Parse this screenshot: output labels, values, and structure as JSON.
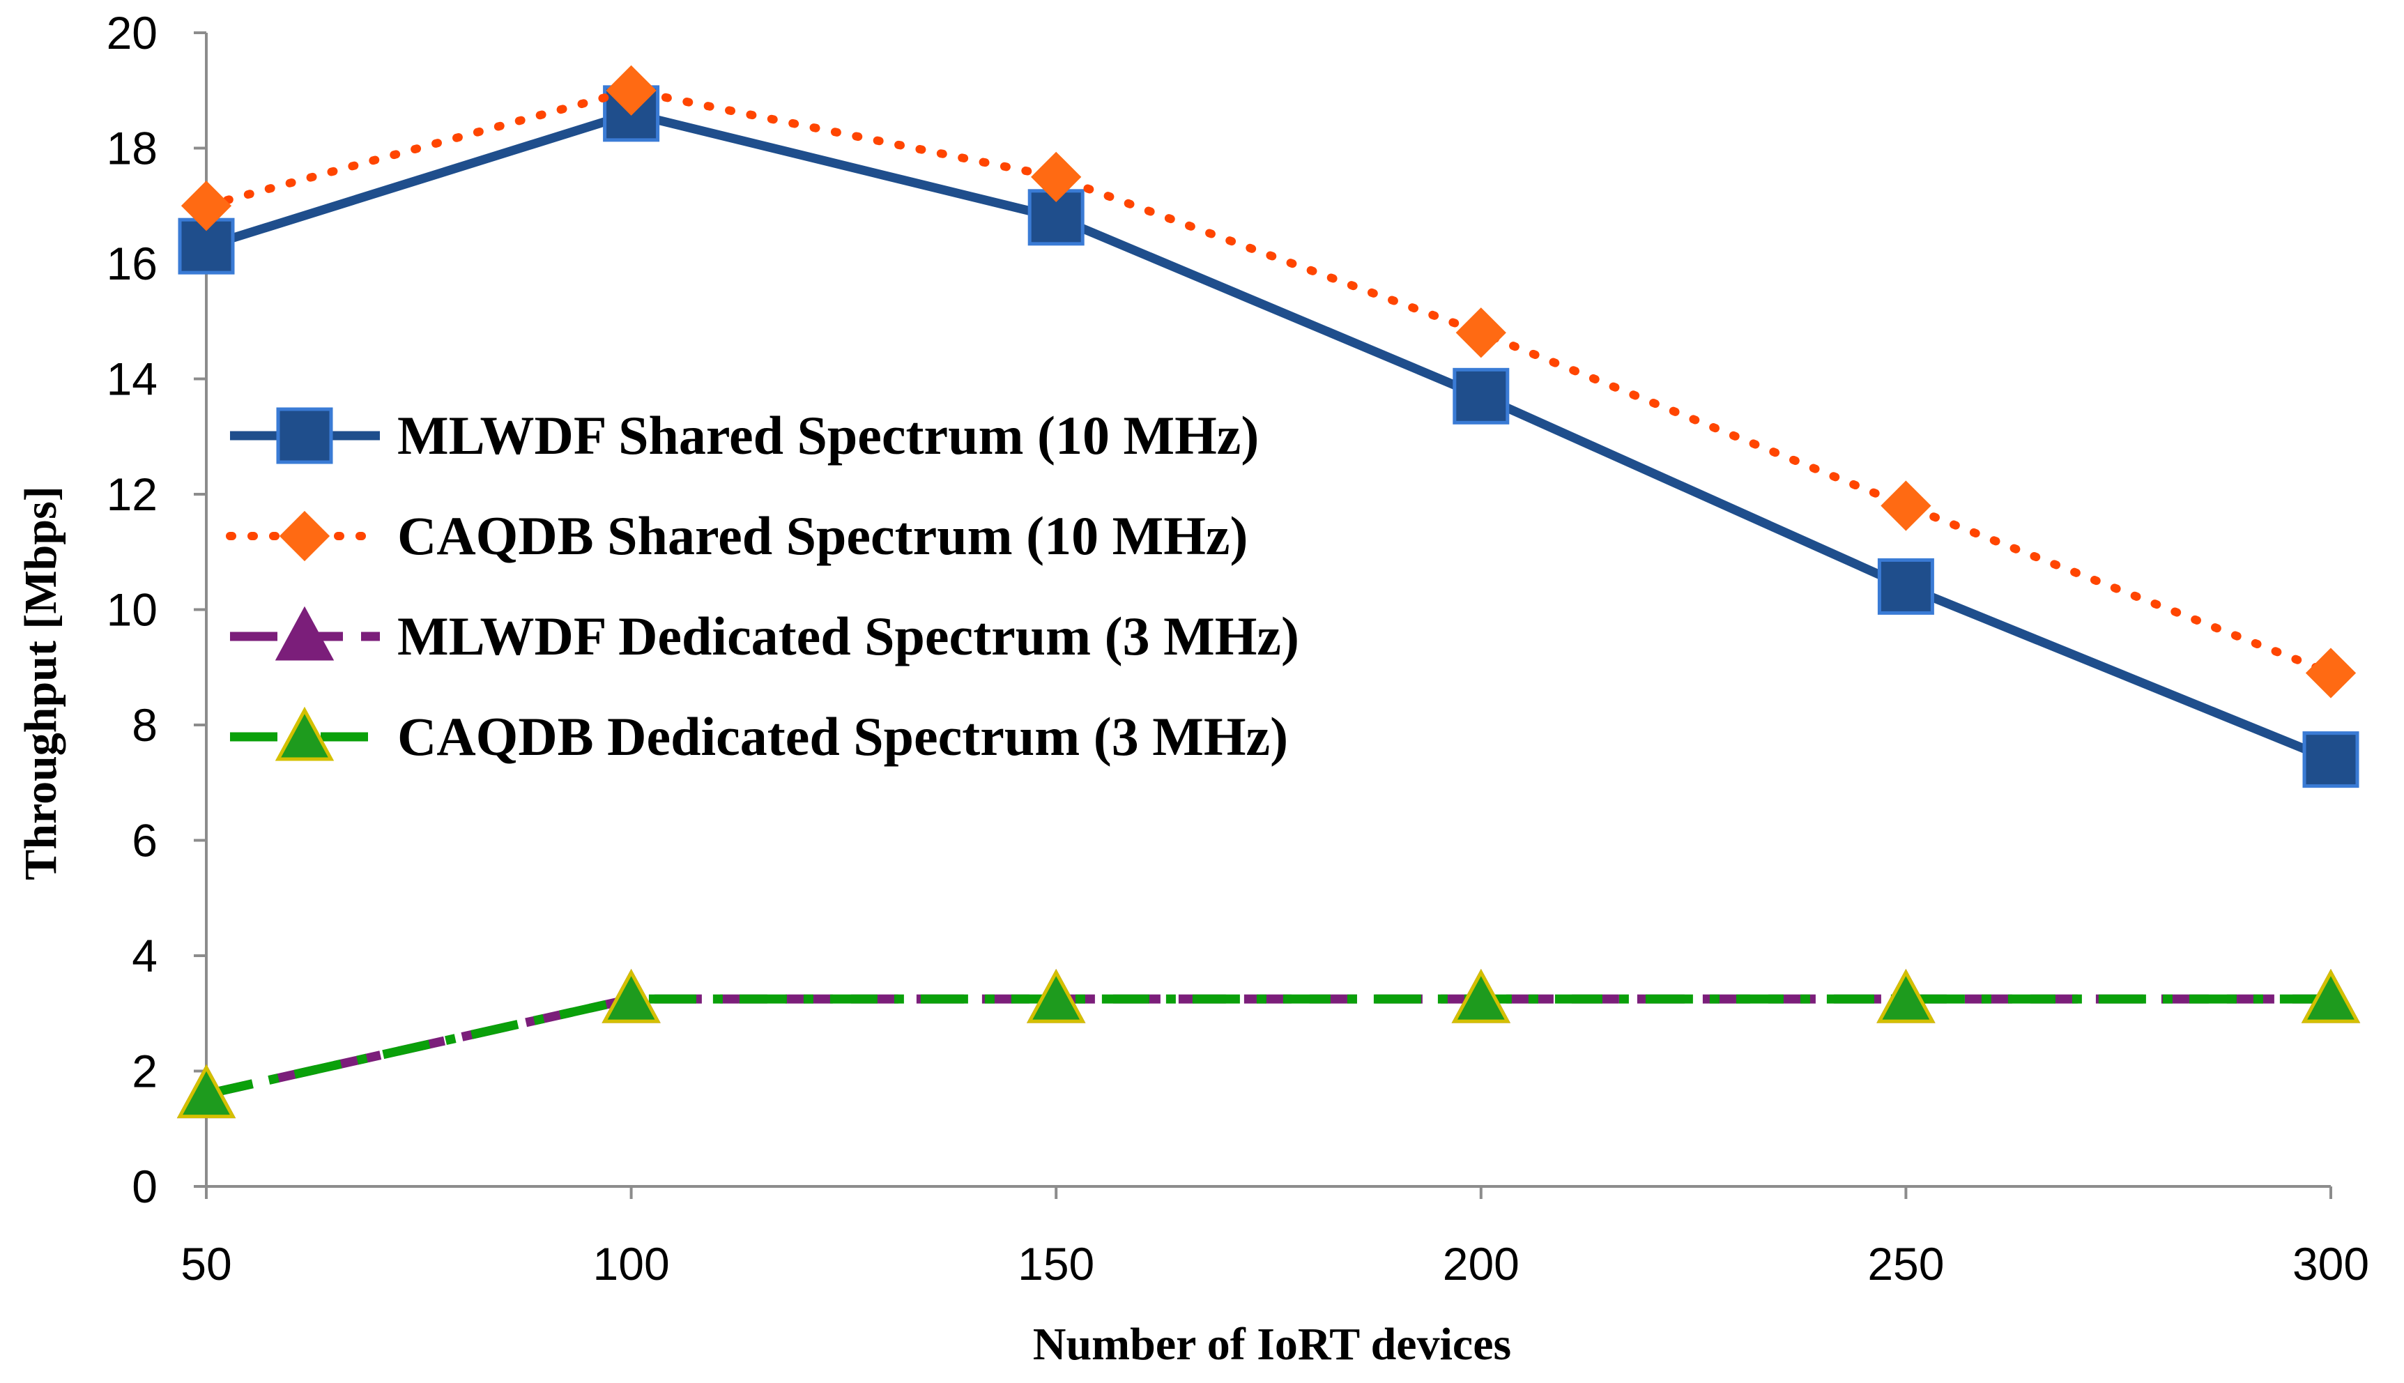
{
  "chart_data": {
    "type": "line",
    "title": "",
    "xlabel": "Number of IoRT devices",
    "ylabel": "Throughput [Mbps]",
    "x": [
      50,
      100,
      150,
      200,
      250,
      300
    ],
    "xlim": [
      50,
      300
    ],
    "ylim": [
      0,
      20
    ],
    "yticks": [
      0,
      2,
      4,
      6,
      8,
      10,
      12,
      14,
      16,
      18,
      20
    ],
    "grid": false,
    "legend_position": "center-left",
    "series": [
      {
        "name": "MLWDF Shared Spectrum (10 MHz)",
        "values": [
          16.3,
          18.6,
          16.8,
          13.7,
          10.4,
          7.4
        ],
        "color": "#1f4e8c",
        "marker": "square",
        "line_style": "solid"
      },
      {
        "name": "CAQDB Shared Spectrum (10 MHz)",
        "values": [
          17.0,
          19.0,
          17.5,
          14.8,
          11.8,
          8.9
        ],
        "color": "#ff4500",
        "marker_color": "#ff6a13",
        "marker": "diamond",
        "line_style": "dotted"
      },
      {
        "name": "MLWDF Dedicated Spectrum (3 MHz)",
        "values": [
          1.6,
          3.25,
          3.25,
          3.25,
          3.25,
          3.25
        ],
        "color": "#7b1e7a",
        "marker": "triangle",
        "line_style": "dashed"
      },
      {
        "name": "CAQDB Dedicated Spectrum (3 MHz)",
        "values": [
          1.6,
          3.25,
          3.25,
          3.25,
          3.25,
          3.25
        ],
        "color": "#0aa00a",
        "marker_color": "#1e9b1e",
        "marker_stroke": "#d4c000",
        "marker": "triangle",
        "line_style": "dashdot"
      }
    ]
  }
}
